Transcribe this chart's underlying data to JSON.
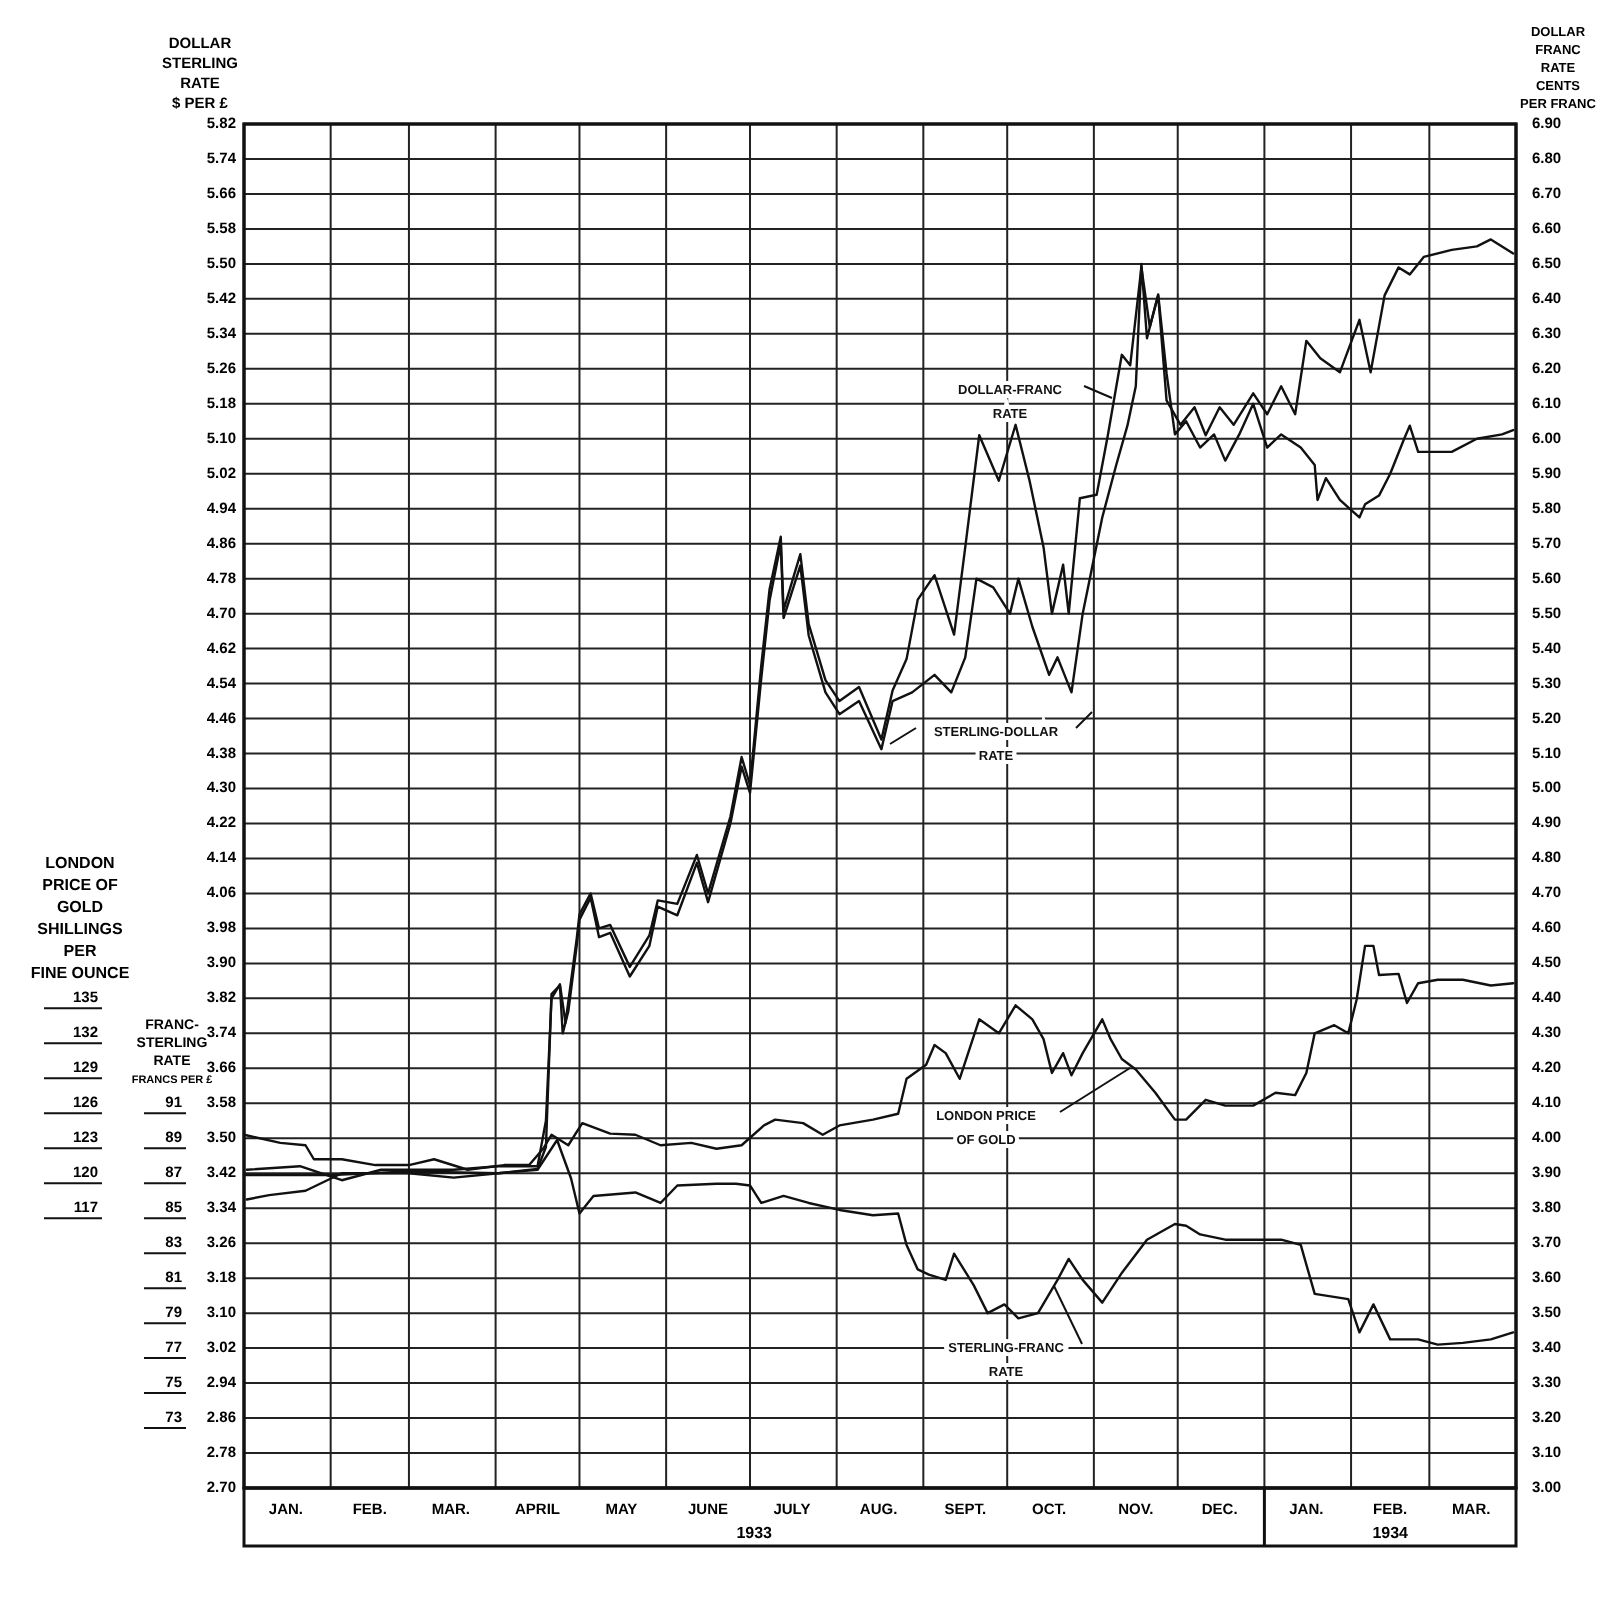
{
  "chart_data": [
    {
      "type": "line",
      "ylabel": "DOLLAR\nSTERLING\nRATE\n$ PER £",
      "y2label": "DOLLAR\nFRANC\nRATE\nCENTS\nPER FRANC",
      "xlim": [
        "1933-01-01",
        "1934-04-01"
      ],
      "xticks": [
        {
          "value": "1933-01-01",
          "label": null
        },
        {
          "value": "1933-01-16",
          "label": "JAN."
        },
        {
          "value": "1933-02-01",
          "label": null
        },
        {
          "value": "1933-02-15",
          "label": "FEB."
        },
        {
          "value": "1933-03-01",
          "label": null
        },
        {
          "value": "1933-03-16",
          "label": "MAR."
        },
        {
          "value": "1933-04-01",
          "label": null
        },
        {
          "value": "1933-04-16",
          "label": "APRIL"
        },
        {
          "value": "1933-05-01",
          "label": null
        },
        {
          "value": "1933-05-16",
          "label": "MAY"
        },
        {
          "value": "1933-06-01",
          "label": null
        },
        {
          "value": "1933-06-16",
          "label": "JUNE"
        },
        {
          "value": "1933-07-01",
          "label": null
        },
        {
          "value": "1933-07-16",
          "label": "JULY"
        },
        {
          "value": "1933-08-01",
          "label": null
        },
        {
          "value": "1933-08-16",
          "label": "AUG."
        },
        {
          "value": "1933-09-01",
          "label": null
        },
        {
          "value": "1933-09-16",
          "label": "SEPT."
        },
        {
          "value": "1933-10-01",
          "label": null
        },
        {
          "value": "1933-10-16",
          "label": "OCT."
        },
        {
          "value": "1933-11-01",
          "label": null
        },
        {
          "value": "1933-11-16",
          "label": "NOV."
        },
        {
          "value": "1933-12-01",
          "label": null
        },
        {
          "value": "1933-12-16",
          "label": "DEC."
        },
        {
          "value": "1934-01-01",
          "label": null
        },
        {
          "value": "1934-01-16",
          "label": "JAN."
        },
        {
          "value": "1934-02-01",
          "label": null
        },
        {
          "value": "1934-02-15",
          "label": "FEB."
        },
        {
          "value": "1934-03-01",
          "label": null
        },
        {
          "value": "1934-03-16",
          "label": "MAR."
        },
        {
          "value": "1934-04-01",
          "label": null
        }
      ],
      "ylim": [
        2.7,
        5.82
      ],
      "yticks": [
        {
          "value": 2.7,
          "label": "2.70"
        },
        2.78,
        2.86,
        2.94,
        3.02,
        {
          "value": 3.1,
          "label": "3.10"
        },
        3.18,
        3.26,
        3.34,
        3.42,
        {
          "value": 3.5,
          "label": "3.50"
        },
        3.58,
        3.66,
        3.74,
        3.82,
        {
          "value": 3.9,
          "label": "3.90"
        },
        3.98,
        4.06,
        4.14,
        4.22,
        {
          "value": 4.3,
          "label": "4.30"
        },
        4.38,
        4.46,
        4.54,
        4.62,
        {
          "value": 4.7,
          "label": "4.70"
        },
        4.78,
        4.86,
        4.94,
        5.02,
        {
          "value": 5.1,
          "label": "5.10"
        },
        5.18,
        5.26,
        5.34,
        5.42,
        {
          "value": 5.5,
          "label": "5.50"
        },
        5.58,
        5.66,
        5.74,
        5.82
      ],
      "y2lim": [
        3.0,
        6.9
      ],
      "y2ticks": [
        {
          "value": 3.0,
          "label": "3.00"
        },
        {
          "value": 3.1,
          "label": "3.10"
        },
        {
          "value": 3.2,
          "label": "3.20"
        },
        {
          "value": 3.3,
          "label": "3.30"
        },
        {
          "value": 3.4,
          "label": "3.40"
        },
        {
          "value": 3.5,
          "label": "3.50"
        },
        {
          "value": 3.6,
          "label": "3.60"
        },
        {
          "value": 3.7,
          "label": "3.70"
        },
        {
          "value": 3.8,
          "label": "3.80"
        },
        {
          "value": 3.9,
          "label": "3.90"
        },
        {
          "value": 4.0,
          "label": "4.00"
        },
        {
          "value": 4.1,
          "label": "4.10"
        },
        {
          "value": 4.2,
          "label": "4.20"
        },
        {
          "value": 4.3,
          "label": "4.30"
        },
        {
          "value": 4.4,
          "label": "4.40"
        },
        {
          "value": 4.5,
          "label": "4.50"
        },
        {
          "value": 4.6,
          "label": "4.60"
        },
        {
          "value": 4.7,
          "label": "4.70"
        },
        {
          "value": 4.8,
          "label": "4.80"
        },
        {
          "value": 4.9,
          "label": "4.90"
        },
        {
          "value": 5.0,
          "label": "5.00"
        },
        {
          "value": 5.1,
          "label": "5.10"
        },
        {
          "value": 5.2,
          "label": "5.20"
        },
        {
          "value": 5.3,
          "label": "5.30"
        },
        {
          "value": 5.4,
          "label": "5.40"
        },
        {
          "value": 5.5,
          "label": "5.50"
        },
        {
          "value": 5.6,
          "label": "5.60"
        },
        {
          "value": 5.7,
          "label": "5.70"
        },
        {
          "value": 5.8,
          "label": "5.80"
        },
        {
          "value": 5.9,
          "label": "5.90"
        },
        {
          "value": 6.0,
          "label": "6.00"
        },
        {
          "value": 6.1,
          "label": "6.10"
        },
        {
          "value": 6.2,
          "label": "6.20"
        },
        {
          "value": 6.3,
          "label": "6.30"
        },
        {
          "value": 6.4,
          "label": "6.40"
        },
        {
          "value": 6.5,
          "label": "6.50"
        },
        {
          "value": 6.6,
          "label": "6.60"
        },
        {
          "value": 6.7,
          "label": "6.70"
        },
        {
          "value": 6.8,
          "label": "6.80"
        },
        {
          "value": 6.9,
          "label": "6.90"
        }
      ],
      "grid": true,
      "annotations": [
        "1933",
        "1934"
      ],
      "series": [
        {
          "name": "STERLING-DOLLAR RATE",
          "color": "#111111",
          "axis": "y",
          "x": [
            "1933-01-02",
            "1933-01-10",
            "1933-01-23",
            "1933-02-05",
            "1933-02-19",
            "1933-03-01",
            "1933-03-17",
            "1933-04-02",
            "1933-04-16",
            "1933-04-19",
            "1933-04-21",
            "1933-04-24",
            "1933-04-25",
            "1933-04-27",
            "1933-04-30",
            "1933-05-01",
            "1933-05-05",
            "1933-05-08",
            "1933-05-12",
            "1933-05-19",
            "1933-05-26",
            "1933-05-29",
            "1933-06-05",
            "1933-06-12",
            "1933-06-16",
            "1933-06-24",
            "1933-06-28",
            "1933-07-01",
            "1933-07-05",
            "1933-07-08",
            "1933-07-12",
            "1933-07-13",
            "1933-07-19",
            "1933-07-22",
            "1933-07-28",
            "1933-08-02",
            "1933-08-09",
            "1933-08-17",
            "1933-08-21",
            "1933-08-28",
            "1933-09-05",
            "1933-09-11",
            "1933-09-16",
            "1933-09-20",
            "1933-09-26",
            "1933-10-02",
            "1933-10-05",
            "1933-10-10",
            "1933-10-16",
            "1933-10-19",
            "1933-10-24",
            "1933-10-28",
            "1933-11-04",
            "1933-11-09",
            "1933-11-13",
            "1933-11-16",
            "1933-11-18",
            "1933-11-20",
            "1933-11-24",
            "1933-11-27",
            "1933-11-30",
            "1933-12-04",
            "1933-12-09",
            "1933-12-14",
            "1933-12-18",
            "1933-12-23",
            "1933-12-28",
            "1934-01-02",
            "1934-01-07",
            "1934-01-14",
            "1934-01-19",
            "1934-01-20",
            "1934-01-23",
            "1934-01-28",
            "1934-02-04",
            "1934-02-06",
            "1934-02-11",
            "1934-02-15",
            "1934-02-20",
            "1934-02-22",
            "1934-02-25",
            "1934-03-02",
            "1934-03-09",
            "1934-03-18",
            "1934-03-27",
            "1934-03-31"
          ],
          "values": [
            3.36,
            3.37,
            3.38,
            3.42,
            3.42,
            3.42,
            3.41,
            3.42,
            3.43,
            3.48,
            3.83,
            3.85,
            3.74,
            3.79,
            3.94,
            4.0,
            4.05,
            3.96,
            3.97,
            3.87,
            3.94,
            4.03,
            4.01,
            4.13,
            4.04,
            4.22,
            4.35,
            4.29,
            4.55,
            4.73,
            4.86,
            4.69,
            4.81,
            4.65,
            4.52,
            4.47,
            4.5,
            4.39,
            4.5,
            4.52,
            4.56,
            4.52,
            4.6,
            4.78,
            4.76,
            4.7,
            4.78,
            4.67,
            4.56,
            4.6,
            4.52,
            4.7,
            4.92,
            5.04,
            5.13,
            5.22,
            5.5,
            5.33,
            5.43,
            5.25,
            5.11,
            5.14,
            5.08,
            5.11,
            5.05,
            5.11,
            5.18,
            5.08,
            5.11,
            5.08,
            5.04,
            4.96,
            5.01,
            4.96,
            4.92,
            4.95,
            4.97,
            5.02,
            5.1,
            5.13,
            5.07,
            5.07,
            5.07,
            5.1,
            5.11,
            5.12
          ]
        },
        {
          "name": "DOLLAR-FRANC RATE",
          "color": "#111111",
          "axis": "y2",
          "x": [
            "1933-01-02",
            "1933-01-21",
            "1933-02-05",
            "1933-02-19",
            "1933-03-01",
            "1933-03-17",
            "1933-04-02",
            "1933-04-16",
            "1933-04-19",
            "1933-04-21",
            "1933-04-24",
            "1933-04-26",
            "1933-04-30",
            "1933-05-01",
            "1933-05-05",
            "1933-05-08",
            "1933-05-12",
            "1933-05-19",
            "1933-05-26",
            "1933-05-29",
            "1933-06-05",
            "1933-06-12",
            "1933-06-16",
            "1933-06-24",
            "1933-06-28",
            "1933-07-01",
            "1933-07-05",
            "1933-07-08",
            "1933-07-12",
            "1933-07-13",
            "1933-07-19",
            "1933-07-22",
            "1933-07-28",
            "1933-08-02",
            "1933-08-09",
            "1933-08-17",
            "1933-08-21",
            "1933-08-26",
            "1933-08-30",
            "1933-09-05",
            "1933-09-12",
            "1933-09-16",
            "1933-09-21",
            "1933-09-28",
            "1933-10-04",
            "1933-10-09",
            "1933-10-14",
            "1933-10-17",
            "1933-10-21",
            "1933-10-23",
            "1933-10-27",
            "1933-11-02",
            "1933-11-06",
            "1933-11-11",
            "1933-11-14",
            "1933-11-18",
            "1933-11-21",
            "1933-11-24",
            "1933-11-27",
            "1933-12-02",
            "1933-12-07",
            "1933-12-11",
            "1933-12-16",
            "1933-12-21",
            "1933-12-28",
            "1934-01-02",
            "1934-01-07",
            "1934-01-12",
            "1934-01-16",
            "1934-01-21",
            "1934-01-28",
            "1934-02-04",
            "1934-02-08",
            "1934-02-13",
            "1934-02-18",
            "1934-02-22",
            "1934-02-27",
            "1934-03-09",
            "1934-03-18",
            "1934-03-23",
            "1934-03-31"
          ],
          "values": [
            3.91,
            3.92,
            3.88,
            3.91,
            3.91,
            3.91,
            3.92,
            3.92,
            4.05,
            4.4,
            4.44,
            4.33,
            4.57,
            4.64,
            4.7,
            4.6,
            4.61,
            4.49,
            4.58,
            4.68,
            4.67,
            4.81,
            4.7,
            4.92,
            5.09,
            5.01,
            5.35,
            5.57,
            5.72,
            5.51,
            5.67,
            5.47,
            5.31,
            5.25,
            5.29,
            5.14,
            5.28,
            5.37,
            5.54,
            5.61,
            5.44,
            5.69,
            6.01,
            5.88,
            6.04,
            5.88,
            5.69,
            5.5,
            5.64,
            5.5,
            5.83,
            5.84,
            6.01,
            6.24,
            6.21,
            6.49,
            6.32,
            6.41,
            6.11,
            6.04,
            6.09,
            6.01,
            6.09,
            6.04,
            6.13,
            6.07,
            6.15,
            6.07,
            6.28,
            6.23,
            6.19,
            6.34,
            6.19,
            6.41,
            6.49,
            6.47,
            6.52,
            6.54,
            6.55,
            6.57,
            6.53
          ]
        }
      ]
    },
    {
      "type": "line",
      "ylabel": "FRANC-\nSTERLING\nRATE\nFRANCS PER £",
      "y2label": "LONDON\nPRICE OF\nGOLD\nSHILLINGS\nPER\nFINE OUNCE",
      "tick_labels": "y",
      "xlim": [
        "1933-01-01",
        "1934-04-01"
      ],
      "ylim": [
        69,
        147
      ],
      "yticks": [
        73,
        75,
        77,
        79,
        81,
        83,
        85,
        87,
        89,
        91
      ],
      "y2lim": [
        93,
        210
      ],
      "y2ticks": [
        117,
        120,
        123,
        126,
        129,
        132,
        135
      ],
      "series": [
        {
          "name": "LONDON PRICE OF GOLD",
          "color": "#111111",
          "axis": "y2",
          "x": [
            "1933-01-01",
            "1933-01-14",
            "1933-01-23",
            "1933-01-26",
            "1933-02-05",
            "1933-02-17",
            "1933-03-01",
            "1933-03-10",
            "1933-03-22",
            "1933-04-04",
            "1933-04-13",
            "1933-04-18",
            "1933-04-21",
            "1933-04-27",
            "1933-05-02",
            "1933-05-12",
            "1933-05-21",
            "1933-05-30",
            "1933-06-10",
            "1933-06-19",
            "1933-06-28",
            "1933-07-06",
            "1933-07-10",
            "1933-07-20",
            "1933-07-27",
            "1933-08-02",
            "1933-08-14",
            "1933-08-23",
            "1933-08-26",
            "1933-09-02",
            "1933-09-05",
            "1933-09-09",
            "1933-09-14",
            "1933-09-21",
            "1933-09-28",
            "1933-10-04",
            "1933-10-10",
            "1933-10-14",
            "1933-10-17",
            "1933-10-21",
            "1933-10-24",
            "1933-10-28",
            "1933-11-04",
            "1933-11-07",
            "1933-11-11",
            "1933-11-16",
            "1933-11-23",
            "1933-11-30",
            "1933-12-04",
            "1933-12-11",
            "1933-12-18",
            "1933-12-28",
            "1934-01-05",
            "1934-01-12",
            "1934-01-16",
            "1934-01-19",
            "1934-01-26",
            "1934-01-31",
            "1934-02-03",
            "1934-02-06",
            "1934-02-09",
            "1934-02-11",
            "1934-02-18",
            "1934-02-21",
            "1934-02-25",
            "1934-03-04",
            "1934-03-13",
            "1934-03-23",
            "1934-03-31"
          ],
          "values": [
            123.3,
            122.6,
            122.4,
            121.2,
            121.2,
            120.7,
            120.7,
            121.2,
            120.3,
            120.7,
            120.7,
            122.1,
            123.3,
            122.4,
            124.3,
            123.4,
            123.3,
            122.4,
            122.6,
            122.1,
            122.4,
            124.1,
            124.6,
            124.3,
            123.3,
            124.1,
            124.6,
            125.1,
            128.1,
            129.3,
            131.0,
            130.3,
            128.1,
            133.2,
            132.0,
            134.4,
            133.2,
            131.5,
            128.6,
            130.3,
            128.4,
            130.3,
            133.2,
            131.5,
            129.8,
            128.9,
            126.9,
            124.6,
            124.6,
            126.3,
            125.8,
            125.8,
            126.9,
            126.7,
            128.6,
            132.0,
            132.7,
            132.0,
            134.9,
            139.5,
            139.5,
            137.0,
            137.1,
            134.6,
            136.3,
            136.6,
            136.6,
            136.1,
            136.3
          ]
        },
        {
          "name": "STERLING-FRANC RATE",
          "color": "#111111",
          "axis": "y",
          "x": [
            "1933-01-01",
            "1933-02-01",
            "1933-03-01",
            "1933-04-02",
            "1933-04-16",
            "1933-04-23",
            "1933-04-28",
            "1933-05-01",
            "1933-05-06",
            "1933-05-21",
            "1933-05-30",
            "1933-06-05",
            "1933-06-19",
            "1933-06-26",
            "1933-07-01",
            "1933-07-05",
            "1933-07-13",
            "1933-07-22",
            "1933-08-02",
            "1933-08-14",
            "1933-08-23",
            "1933-08-26",
            "1933-08-30",
            "1933-09-03",
            "1933-09-09",
            "1933-09-12",
            "1933-09-19",
            "1933-09-24",
            "1933-09-30",
            "1933-10-05",
            "1933-10-12",
            "1933-10-19",
            "1933-10-23",
            "1933-10-28",
            "1933-11-04",
            "1933-11-11",
            "1933-11-20",
            "1933-11-30",
            "1933-12-04",
            "1933-12-09",
            "1933-12-18",
            "1933-12-28",
            "1934-01-07",
            "1934-01-14",
            "1934-01-19",
            "1934-01-31",
            "1934-02-04",
            "1934-02-09",
            "1934-02-15",
            "1934-02-25",
            "1934-03-04",
            "1934-03-13",
            "1934-03-23",
            "1934-03-31"
          ],
          "values": [
            86.9,
            86.9,
            87.1,
            87.0,
            87.2,
            88.9,
            86.7,
            84.7,
            85.7,
            85.9,
            85.3,
            86.3,
            86.4,
            86.4,
            86.3,
            85.3,
            85.7,
            85.3,
            84.9,
            84.6,
            84.7,
            82.9,
            81.5,
            81.2,
            80.9,
            82.4,
            80.6,
            79.0,
            79.5,
            78.7,
            79.0,
            80.9,
            82.1,
            80.9,
            79.6,
            81.3,
            83.2,
            84.1,
            84.0,
            83.5,
            83.2,
            83.2,
            83.2,
            82.9,
            80.1,
            79.8,
            77.9,
            79.5,
            77.5,
            77.5,
            77.2,
            77.3,
            77.5,
            77.9
          ]
        }
      ]
    }
  ]
}
